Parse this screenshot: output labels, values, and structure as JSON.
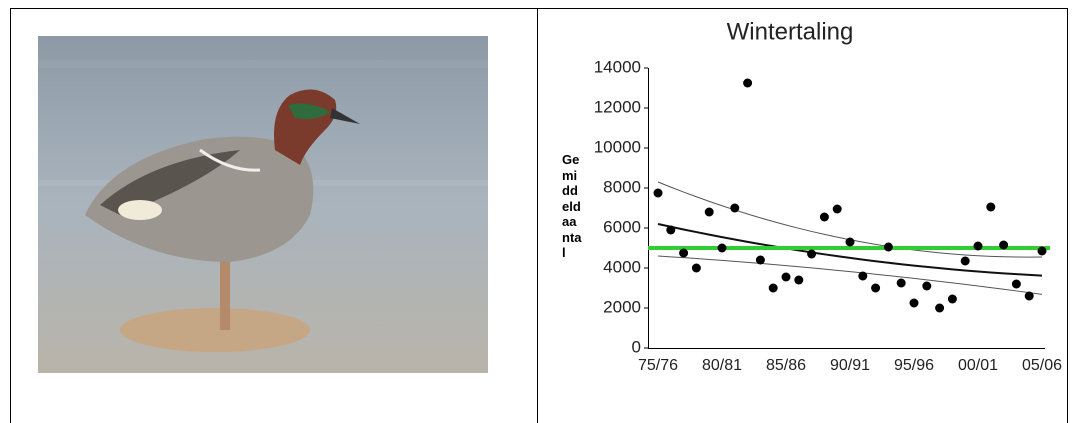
{
  "chart_data": {
    "type": "scatter",
    "title": "Wintertaling",
    "y_label": "Gemiddeld aantal",
    "categories": [
      "75/76",
      null,
      null,
      null,
      null,
      "80/81",
      null,
      null,
      null,
      null,
      "85/86",
      null,
      null,
      null,
      null,
      "90/91",
      null,
      null,
      null,
      null,
      "95/96",
      null,
      null,
      null,
      null,
      "00/01",
      null,
      null,
      null,
      null,
      "05/06"
    ],
    "series": [
      {
        "mark": "dot",
        "color": "#000000",
        "values": [
          7750,
          5900,
          4750,
          4000,
          6800,
          5000,
          7000,
          13250,
          4400,
          3000,
          3550,
          3400,
          4700,
          6550,
          6950,
          5300,
          3600,
          3000,
          5050,
          3250,
          2250,
          3100,
          2000,
          2450,
          4350,
          5100,
          7050,
          5150,
          3200,
          2600,
          4850
        ]
      },
      {
        "mark": "line",
        "color": "#111111",
        "width": 2,
        "values": [
          6200,
          6062,
          5927,
          5796,
          5669,
          5545,
          5425,
          5308,
          5195,
          5086,
          4980,
          4878,
          4779,
          4684,
          4593,
          4505,
          4421,
          4340,
          4263,
          4190,
          4120,
          4054,
          3991,
          3932,
          3877,
          3825,
          3777,
          3732,
          3691,
          3654,
          3620
        ]
      },
      {
        "mark": "line",
        "color": "#555555",
        "width": 1,
        "values": [
          8300,
          8045,
          7798,
          7561,
          7332,
          7113,
          6902,
          6701,
          6508,
          6325,
          6150,
          5985,
          5828,
          5681,
          5542,
          5413,
          5292,
          5181,
          5078,
          4985,
          4900,
          4825,
          4758,
          4701,
          4652,
          4613,
          4582,
          4561,
          4548,
          4545,
          4550
        ]
      },
      {
        "mark": "line",
        "color": "#555555",
        "width": 1,
        "values": [
          4600,
          4559,
          4517,
          4473,
          4427,
          4380,
          4331,
          4281,
          4229,
          4175,
          4120,
          4063,
          4005,
          3945,
          3883,
          3820,
          3755,
          3689,
          3621,
          3551,
          3480,
          3407,
          3333,
          3257,
          3179,
          3100,
          3019,
          2937,
          2853,
          2767,
          2680
        ]
      }
    ],
    "reference_line": {
      "value": 5000,
      "color": "#33cc33"
    },
    "ylim": [
      0,
      14000
    ],
    "yticks": [
      0,
      2000,
      4000,
      6000,
      8000,
      10000,
      12000,
      14000
    ],
    "grid": false
  }
}
